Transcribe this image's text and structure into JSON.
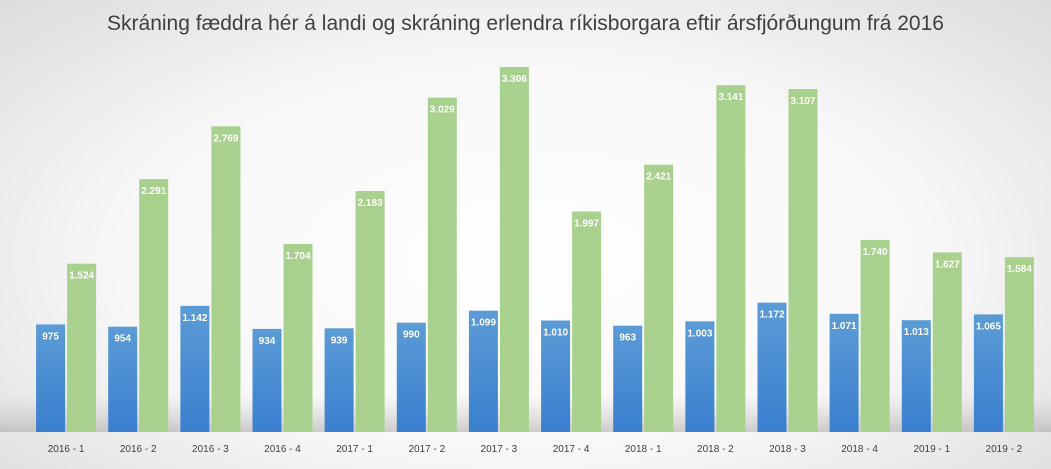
{
  "chart_data": {
    "type": "bar",
    "title": "Skráning fæddra hér á landi og skráning erlendra ríkisborgara eftir ársfjórðungum frá 2016",
    "xlabel": "",
    "ylabel": "",
    "categories": [
      "2016 - 1",
      "2016 - 2",
      "2016 - 3",
      "2016 - 4",
      "2017 - 1",
      "2017 - 2",
      "2017 - 3",
      "2017 - 4",
      "2018 - 1",
      "2018 - 2",
      "2018 - 3",
      "2018 - 4",
      "2019 - 1",
      "2019 - 2"
    ],
    "series": [
      {
        "values": [
          975,
          954,
          1142,
          934,
          939,
          990,
          1099,
          1010,
          963,
          1003,
          1172,
          1071,
          1013,
          1065
        ],
        "labels": [
          "975",
          "954",
          "1.142",
          "934",
          "939",
          "990",
          "1.099",
          "1.010",
          "963",
          "1.003",
          "1.172",
          "1.071",
          "1.013",
          "1.065"
        ],
        "color": "#4f8fd6"
      },
      {
        "values": [
          1524,
          2291,
          2769,
          1704,
          2183,
          3029,
          3306,
          1997,
          2421,
          3141,
          3107,
          1740,
          1627,
          1584
        ],
        "labels": [
          "1.524",
          "2.291",
          "2.769",
          "1.704",
          "2.183",
          "3.029",
          "3.306",
          "1.997",
          "2.421",
          "3.141",
          "3.107",
          "1.740",
          "1.627",
          "1.584"
        ],
        "color": "#a9d18e"
      }
    ],
    "legend": "none",
    "grid": false,
    "ylim": [
      0,
      3500
    ]
  }
}
